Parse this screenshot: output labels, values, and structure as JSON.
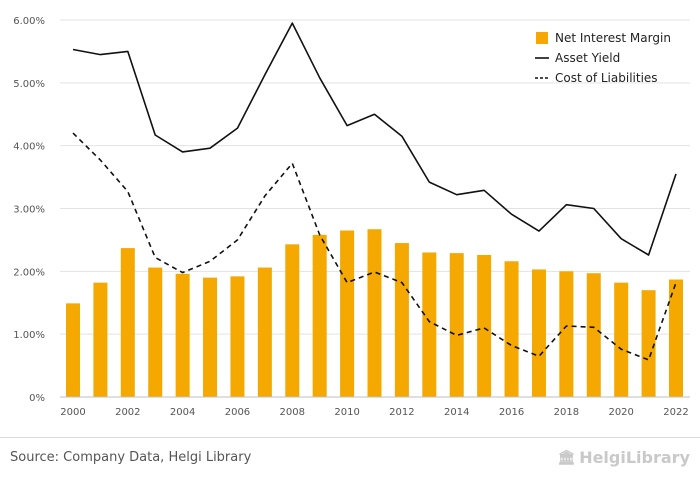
{
  "chart_data": {
    "type": "bar",
    "categories": [
      "2000",
      "2001",
      "2002",
      "2003",
      "2004",
      "2005",
      "2006",
      "2007",
      "2008",
      "2009",
      "2010",
      "2011",
      "2012",
      "2013",
      "2014",
      "2015",
      "2016",
      "2017",
      "2018",
      "2019",
      "2020",
      "2021",
      "2022"
    ],
    "series": [
      {
        "name": "Net Interest Margin",
        "kind": "bar",
        "color": "#f5a800",
        "values": [
          1.49,
          1.82,
          2.37,
          2.06,
          1.96,
          1.9,
          1.92,
          2.06,
          2.43,
          2.58,
          2.65,
          2.67,
          2.45,
          2.3,
          2.29,
          2.26,
          2.16,
          2.03,
          2.0,
          1.97,
          1.82,
          1.7,
          1.87
        ]
      },
      {
        "name": "Asset Yield",
        "kind": "line",
        "style": "solid",
        "color": "#111111",
        "values": [
          5.53,
          5.45,
          5.5,
          4.17,
          3.9,
          3.96,
          4.28,
          5.13,
          5.95,
          5.08,
          4.32,
          4.5,
          4.15,
          3.42,
          3.22,
          3.29,
          2.91,
          2.64,
          3.06,
          3.0,
          2.52,
          2.26,
          3.55
        ]
      },
      {
        "name": "Cost of Liabilities",
        "kind": "line",
        "style": "dashed",
        "color": "#111111",
        "values": [
          4.2,
          3.77,
          3.27,
          2.22,
          1.98,
          2.16,
          2.5,
          3.2,
          3.72,
          2.58,
          1.82,
          1.99,
          1.82,
          1.2,
          0.98,
          1.1,
          0.82,
          0.65,
          1.13,
          1.11,
          0.76,
          0.59,
          1.82
        ]
      }
    ],
    "x_tick_labels": [
      "2000",
      "2002",
      "2004",
      "2006",
      "2008",
      "2010",
      "2012",
      "2014",
      "2016",
      "2018",
      "2020",
      "2022"
    ],
    "y_tick_labels": [
      "0%",
      "1.00%",
      "2.00%",
      "3.00%",
      "4.00%",
      "5.00%",
      "6.00%"
    ],
    "ylim": [
      0,
      6
    ],
    "grid": true,
    "legend_position": "top-right",
    "title": "",
    "xlabel": "",
    "ylabel": ""
  },
  "footer": {
    "source": "Source: Company Data, Helgi Library",
    "brand": "HelgiLibrary",
    "brand_icon": "library-icon"
  }
}
